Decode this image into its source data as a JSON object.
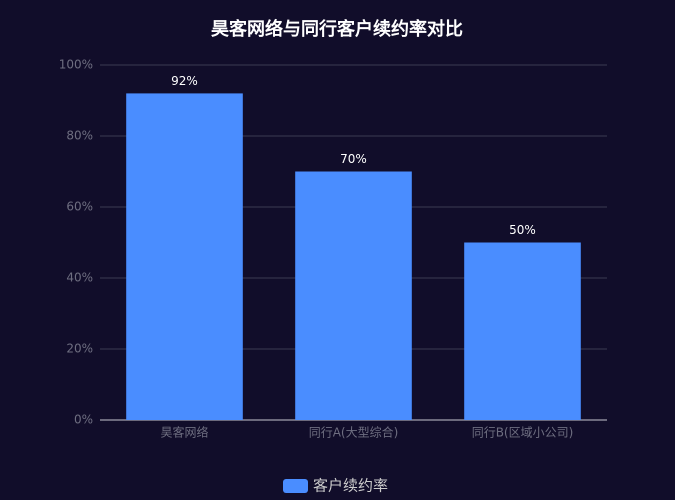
{
  "chart_data": {
    "type": "bar",
    "title": "昊客网络与同行客户续约率对比",
    "categories": [
      "昊客网络",
      "同行A(大型综合)",
      "同行B(区域小公司)"
    ],
    "series": [
      {
        "name": "客户续约率",
        "color": "#4a8dff",
        "values": [
          92,
          70,
          50
        ],
        "value_labels": [
          "92%",
          "70%",
          "50%"
        ]
      }
    ],
    "ylim": [
      0,
      100
    ],
    "yticks": [
      {
        "value": 0,
        "label": "0%"
      },
      {
        "value": 20,
        "label": "20%"
      },
      {
        "value": 40,
        "label": "40%"
      },
      {
        "value": 60,
        "label": "60%"
      },
      {
        "value": 80,
        "label": "80%"
      },
      {
        "value": 100,
        "label": "100%"
      }
    ],
    "grid": true,
    "legend": "bottom"
  }
}
